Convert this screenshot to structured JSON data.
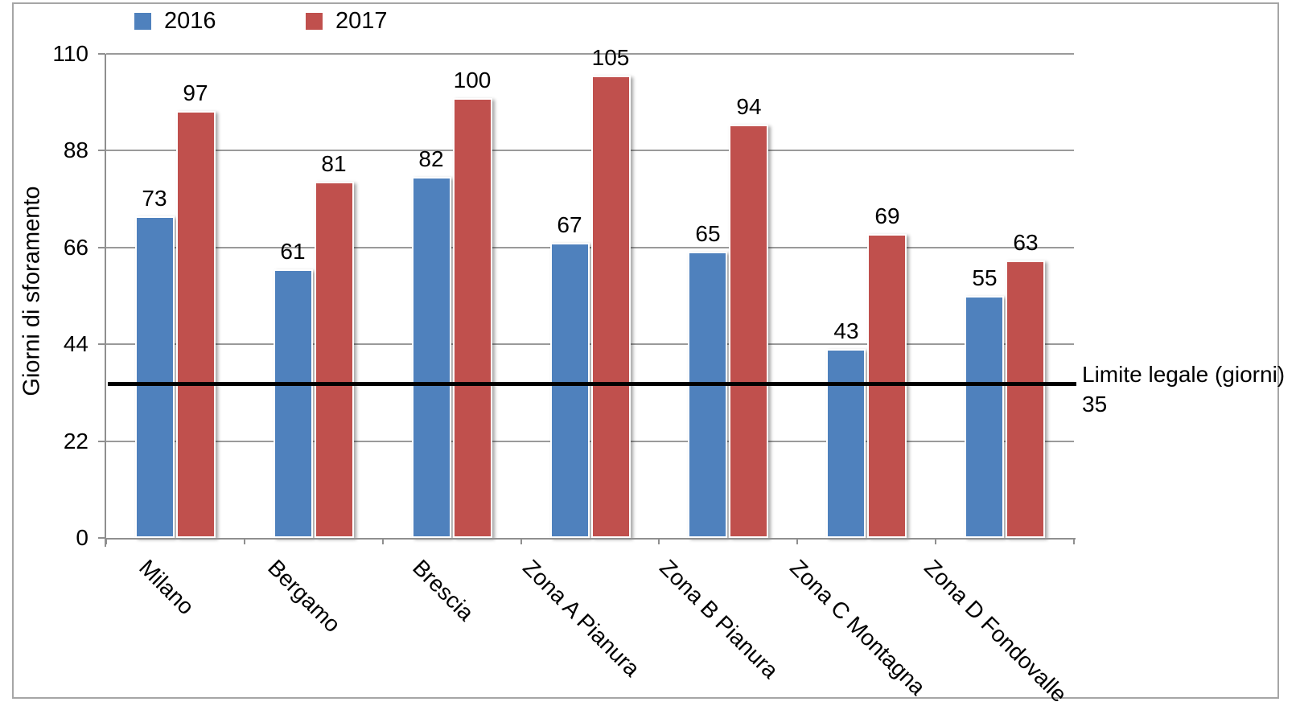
{
  "chart_data": {
    "type": "bar",
    "title": "",
    "categories": [
      "Milano",
      "Bergamo",
      "Brescia",
      "Zona A Pianura",
      "Zona B Pianura",
      "Zona C Montagna",
      "Zona D Fondovalle"
    ],
    "series": [
      {
        "name": "2016",
        "color": "#4f81bd",
        "values": [
          73,
          61,
          82,
          67,
          65,
          43,
          55
        ]
      },
      {
        "name": "2017",
        "color": "#c0504d",
        "values": [
          97,
          81,
          100,
          105,
          94,
          69,
          63
        ]
      }
    ],
    "xlabel": "",
    "ylabel": "Giorni di sforamento",
    "yticks": [
      0,
      22,
      44,
      66,
      88,
      110
    ],
    "ylim": [
      0,
      110
    ],
    "grid": true,
    "legend_position": "top-left",
    "reference_line": {
      "value": 35,
      "label_line1": "Limite legale (giorni)",
      "label_line2": "35",
      "color": "#000000"
    },
    "colors": {
      "gridline": "#9a9a9a",
      "axis": "#8f8f8f",
      "frame_border": "#a6a6a6",
      "text": "#000000"
    }
  }
}
